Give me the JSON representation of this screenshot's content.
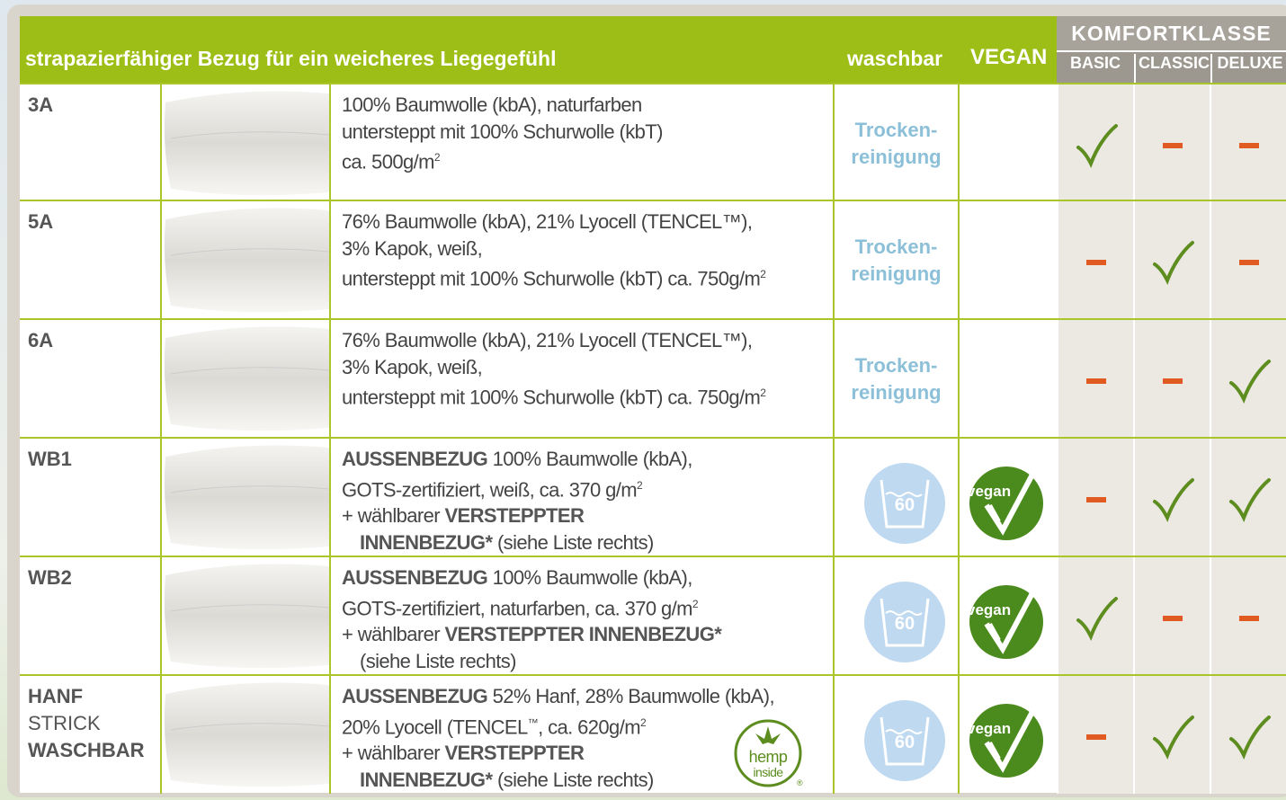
{
  "header": {
    "title": "strapazierfähiger Bezug für ein weicheres Liegegefühl",
    "waschbar": "waschbar",
    "vegan": "VEGAN",
    "komfortklasse": "KOMFORTKLASSE",
    "classes": [
      "BASIC",
      "CLASSIC",
      "DELUXE"
    ]
  },
  "rows": [
    {
      "name": [
        "3A"
      ],
      "description": [
        [
          "100% Baumwolle (kbA), naturfarben"
        ],
        [
          "untersteppt mit 100% Schurwolle (kbT)"
        ],
        [
          "ca. 500g/m",
          "2"
        ]
      ],
      "waschbar": [
        "Trocken-",
        "reinigung"
      ]
    },
    {
      "name": [
        "5A"
      ],
      "description": [
        [
          "76% Baumwolle (kbA), 21% Lyocell (TENCEL™),"
        ],
        [
          "3% Kapok, weiß,"
        ],
        [
          "untersteppt mit 100% Schurwolle (kbT) ca. 750g/m",
          "2"
        ]
      ],
      "waschbar": [
        "Trocken-",
        "reinigung"
      ]
    },
    {
      "name": [
        "6A"
      ],
      "description": [
        [
          "76% Baumwolle (kbA), 21% Lyocell (TENCEL™),"
        ],
        [
          "3% Kapok, weiß,"
        ],
        [
          "untersteppt mit 100% Schurwolle (kbT) ca. 750g/m",
          "2"
        ]
      ],
      "waschbar": [
        "Trocken-",
        "reinigung"
      ]
    },
    {
      "name": [
        "WB1"
      ],
      "description": [
        [
          "AUSSENBEZUG",
          "100% Baumwolle (kbA),"
        ],
        [
          "GOTS-zertifiziert, weiß, ca. 370 g/m",
          "2"
        ],
        [
          "+ wählbarer",
          "VERSTEPPTER"
        ],
        [
          "INNENBEZUG*",
          "(siehe Liste rechts)"
        ]
      ],
      "wash_icon": "60",
      "vegan_icon": "vegan"
    },
    {
      "name": [
        "WB2"
      ],
      "description": [
        [
          "AUSSENBEZUG",
          "100% Baumwolle (kbA),"
        ],
        [
          "GOTS-zertifiziert, naturfarben, ca. 370 g/m",
          "2"
        ],
        [
          "+ wählbarer",
          "VERSTEPPTER INNENBEZUG*"
        ],
        [
          "(siehe Liste rechts)"
        ]
      ],
      "wash_icon": "60",
      "vegan_icon": "vegan"
    },
    {
      "name": [
        "HANF",
        "STRICK",
        "WASCHBAR"
      ],
      "description": [
        [
          "AUSSENBEZUG",
          "52% Hanf, 28% Baumwolle (kbA),"
        ],
        [
          "20% Lyocell (TENCEL",
          "™",
          ", ca. 620g/m",
          "2"
        ],
        [
          "+ wählbarer",
          "VERSTEPPTER"
        ],
        [
          "INNENBEZUG*",
          "(siehe Liste rechts)"
        ]
      ],
      "badge": [
        "hemp",
        "inside",
        "®"
      ],
      "wash_icon": "60",
      "vegan_icon": "vegan"
    }
  ]
}
